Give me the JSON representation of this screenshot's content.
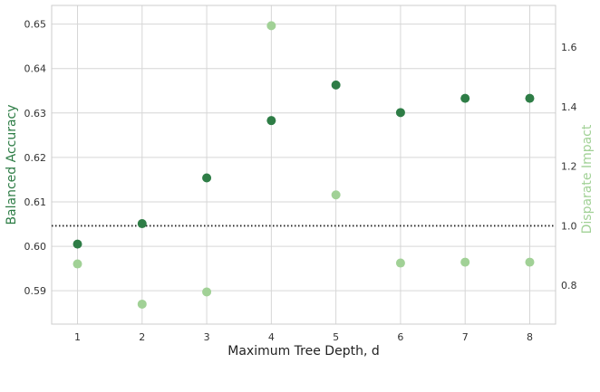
{
  "chart_data": {
    "type": "scatter",
    "xlabel": "Maximum Tree Depth, d",
    "ylabel_left": "Balanced Accuracy",
    "ylabel_right": "Disparate Impact",
    "x": [
      1,
      2,
      3,
      4,
      5,
      6,
      7,
      8
    ],
    "xlim": [
      0.6,
      8.4
    ],
    "ylim_left": [
      0.5825,
      0.6542
    ],
    "ylim_right": [
      0.67,
      1.74
    ],
    "x_ticks": [
      "1",
      "2",
      "3",
      "4",
      "5",
      "6",
      "7",
      "8"
    ],
    "y_ticks_left": [
      "0.59",
      "0.60",
      "0.61",
      "0.62",
      "0.63",
      "0.64",
      "0.65"
    ],
    "y_ticks_right": [
      "0.8",
      "1.0",
      "1.2",
      "1.4",
      "1.6"
    ],
    "grid": true,
    "reference_line": {
      "axis": "right",
      "value": 1.0,
      "style": "dotted",
      "color": "#222222"
    },
    "series": [
      {
        "axis": "left",
        "color": "#2e7d46",
        "values": [
          0.6005,
          0.6051,
          0.6154,
          0.6283,
          0.6363,
          0.6301,
          0.6333,
          0.6333
        ]
      },
      {
        "axis": "right",
        "color": "#a1d196",
        "values": [
          0.872,
          0.737,
          0.778,
          1.672,
          1.104,
          0.875,
          0.878,
          0.878
        ]
      }
    ]
  }
}
